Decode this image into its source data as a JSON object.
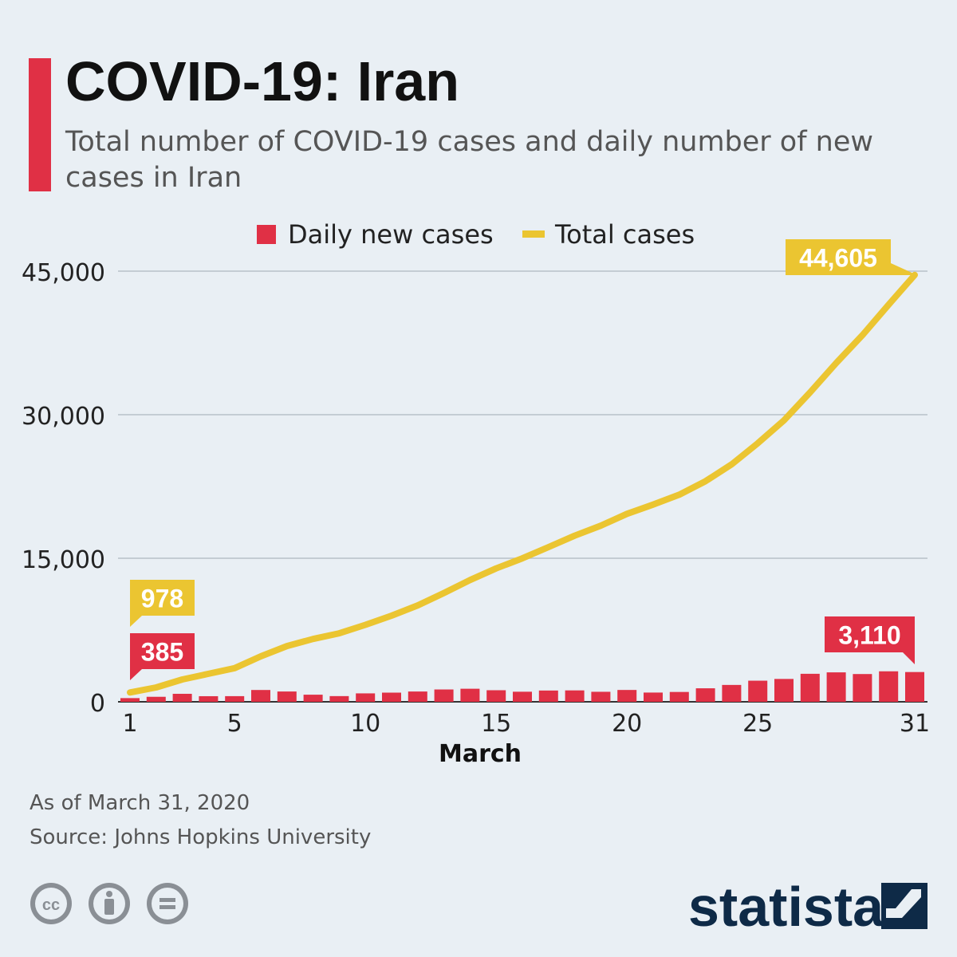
{
  "header": {
    "title": "COVID-19: Iran",
    "subtitle": "Total number of COVID-19 cases and daily number of new cases in Iran"
  },
  "legend": {
    "daily_label": "Daily new cases",
    "total_label": "Total cases"
  },
  "colors": {
    "accent": "#e03045",
    "daily": "#e03045",
    "total": "#ebc531",
    "background": "#e9eff4",
    "brand": "#0e2a47"
  },
  "chart_data": {
    "type": "bar+line",
    "title": "COVID-19: Iran",
    "xlabel": "March",
    "ylabel": "",
    "ylim": [
      0,
      45000
    ],
    "yticks": [
      0,
      15000,
      30000,
      45000
    ],
    "ytick_labels": [
      "0",
      "15,000",
      "30,000",
      "45,000"
    ],
    "xticks": [
      1,
      5,
      10,
      15,
      20,
      25,
      31
    ],
    "x": [
      1,
      2,
      3,
      4,
      5,
      6,
      7,
      8,
      9,
      10,
      11,
      12,
      13,
      14,
      15,
      16,
      17,
      18,
      19,
      20,
      21,
      22,
      23,
      24,
      25,
      26,
      27,
      28,
      29,
      30,
      31
    ],
    "series": [
      {
        "name": "Daily new cases",
        "type": "bar",
        "values": [
          385,
          523,
          835,
          586,
          591,
          1234,
          1076,
          743,
          595,
          881,
          958,
          1075,
          1289,
          1365,
          1209,
          1053,
          1178,
          1192,
          1046,
          1237,
          966,
          1028,
          1411,
          1762,
          2206,
          2389,
          2926,
          3076,
          2901,
          3186,
          3110
        ]
      },
      {
        "name": "Total cases",
        "type": "line",
        "values": [
          978,
          1501,
          2336,
          2922,
          3513,
          4747,
          5823,
          6566,
          7161,
          8042,
          9000,
          10075,
          11364,
          12729,
          13938,
          14991,
          16169,
          17361,
          18407,
          19644,
          20610,
          21638,
          23049,
          24811,
          27017,
          29406,
          32332,
          35408,
          38309,
          41495,
          44605
        ]
      }
    ],
    "annotations": {
      "total_start": "978",
      "total_end": "44,605",
      "daily_start": "385",
      "daily_end": "3,110"
    }
  },
  "footer": {
    "as_of": "As of March 31, 2020",
    "source": "Source: Johns Hopkins University",
    "brand": "statista"
  }
}
